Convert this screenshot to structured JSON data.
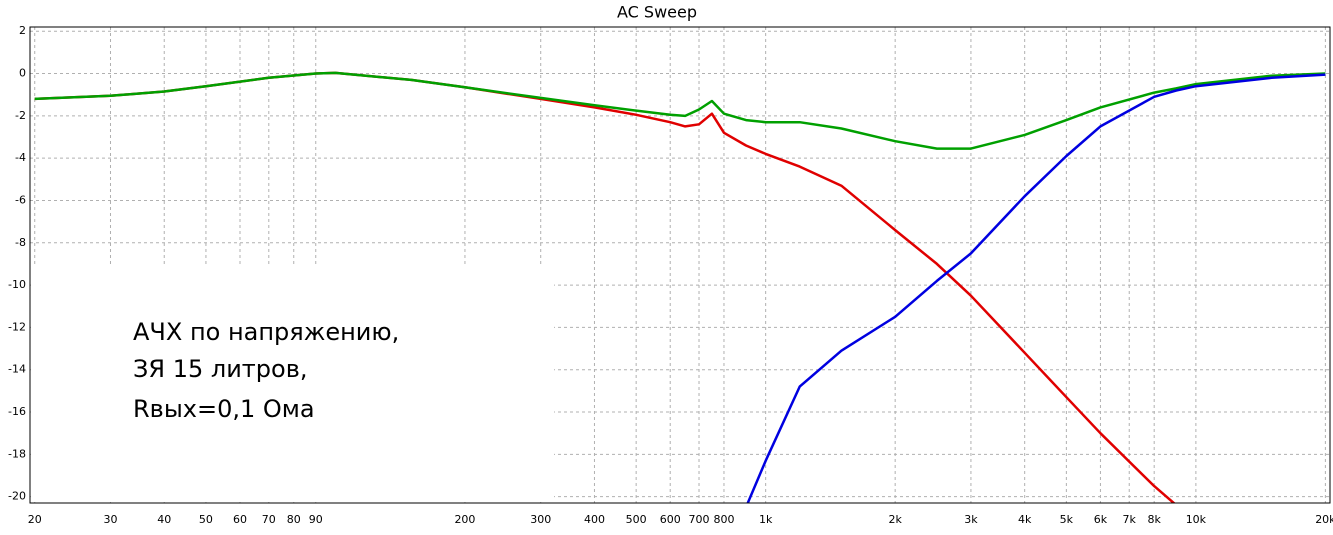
{
  "chart_data": {
    "type": "line",
    "title": "AC Sweep",
    "annotation": [
      "АЧХ по напряжению,",
      "ЗЯ 15 литров,",
      "Rвых=0,1 Ома"
    ],
    "log_x": true,
    "grid": true,
    "xlim": [
      19.5,
      20500
    ],
    "ylim": [
      -20.3,
      2.2
    ],
    "xticks": [
      20,
      30,
      40,
      50,
      60,
      70,
      80,
      90,
      200,
      300,
      400,
      500,
      600,
      700,
      800,
      {
        "value": 1000,
        "label": "1k"
      },
      {
        "value": 2000,
        "label": "2k"
      },
      {
        "value": 3000,
        "label": "3k"
      },
      {
        "value": 4000,
        "label": "4k"
      },
      {
        "value": 5000,
        "label": "5k"
      },
      {
        "value": 6000,
        "label": "6k"
      },
      {
        "value": 7000,
        "label": "7k"
      },
      {
        "value": 8000,
        "label": "8k"
      },
      {
        "value": 10000,
        "label": "10k"
      },
      {
        "value": 20000,
        "label": "20k"
      }
    ],
    "yticks": [
      2,
      0,
      -2,
      -4,
      -6,
      -8,
      -10,
      -12,
      -14,
      -16,
      -18,
      -20
    ],
    "x": [
      20,
      30,
      40,
      50,
      70,
      90,
      100,
      150,
      200,
      300,
      400,
      500,
      600,
      650,
      700,
      750,
      800,
      900,
      1000,
      1200,
      1500,
      2000,
      2500,
      3000,
      4000,
      5000,
      6000,
      8000,
      9000,
      10000,
      15000,
      20000
    ],
    "series": [
      {
        "color": "#e00000",
        "values": [
          -1.2,
          -1.05,
          -0.85,
          -0.6,
          -0.2,
          0,
          0.03,
          -0.3,
          -0.65,
          -1.2,
          -1.6,
          -1.95,
          -2.3,
          -2.5,
          -2.4,
          -1.9,
          -2.8,
          -3.4,
          -3.8,
          -4.4,
          -5.3,
          -7.4,
          -9.0,
          -10.5,
          -13.2,
          -15.3,
          -17.0,
          -19.5,
          -20.4,
          null,
          null,
          null
        ]
      },
      {
        "color": "#00a000",
        "values": [
          -1.2,
          -1.05,
          -0.85,
          -0.6,
          -0.2,
          0,
          0.03,
          -0.3,
          -0.65,
          -1.15,
          -1.5,
          -1.75,
          -1.95,
          -2.0,
          -1.7,
          -1.3,
          -1.9,
          -2.2,
          -2.3,
          -2.3,
          -2.6,
          -3.2,
          -3.55,
          -3.55,
          -2.9,
          -2.2,
          -1.6,
          -0.9,
          -0.7,
          -0.5,
          -0.1,
          0
        ]
      },
      {
        "color": "#0000e0",
        "values": [
          null,
          null,
          null,
          null,
          null,
          null,
          null,
          null,
          null,
          null,
          null,
          null,
          null,
          null,
          null,
          null,
          null,
          -20.5,
          -18.3,
          -14.8,
          -13.1,
          -11.5,
          -9.8,
          -8.5,
          -5.8,
          -3.9,
          -2.5,
          -1.1,
          -0.8,
          -0.6,
          -0.2,
          -0.05
        ]
      }
    ]
  }
}
